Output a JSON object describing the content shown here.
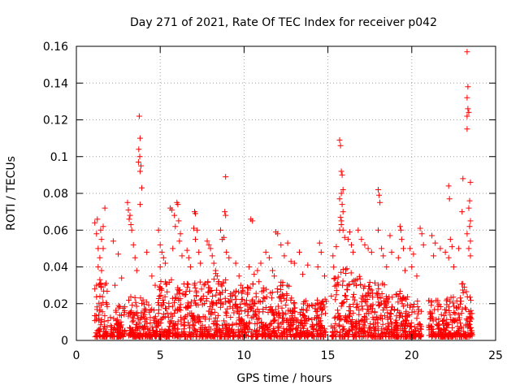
{
  "chart_data": {
    "type": "scatter",
    "title": "Day 271 of 2021, Rate Of TEC Index for receiver p042",
    "xlabel": "GPS time / hours",
    "ylabel": "ROTI / TECUs",
    "xlim": [
      0,
      25
    ],
    "ylim": [
      0,
      0.16
    ],
    "xticks": [
      0,
      5,
      10,
      15,
      20,
      25
    ],
    "xtick_labels": [
      "0",
      "5",
      "10",
      "15",
      "20",
      "25"
    ],
    "yticks": [
      0,
      0.02,
      0.04,
      0.06,
      0.08,
      0.1,
      0.12,
      0.14,
      0.16
    ],
    "ytick_labels": [
      "0",
      "0.02",
      "0.04",
      "0.06",
      "0.08",
      "0.1",
      "0.12",
      "0.14",
      "0.16"
    ],
    "grid": true,
    "marker": "plus",
    "color": "#ff0000",
    "series": [
      {
        "name": "ROTI",
        "points": [
          [
            1.1,
            0.064
          ],
          [
            1.2,
            0.058
          ],
          [
            1.3,
            0.05
          ],
          [
            1.4,
            0.045
          ],
          [
            1.5,
            0.038
          ],
          [
            1.6,
            0.062
          ],
          [
            1.7,
            0.072
          ],
          [
            1.5,
            0.055
          ],
          [
            1.3,
            0.04
          ],
          [
            1.2,
            0.03
          ],
          [
            1.25,
            0.066
          ],
          [
            1.45,
            0.06
          ],
          [
            1.6,
            0.05
          ],
          [
            1.1,
            0.028
          ],
          [
            1.4,
            0.033
          ],
          [
            2.2,
            0.054
          ],
          [
            2.5,
            0.047
          ],
          [
            2.7,
            0.034
          ],
          [
            2.3,
            0.03
          ],
          [
            3.05,
            0.075
          ],
          [
            3.1,
            0.071
          ],
          [
            3.2,
            0.068
          ],
          [
            3.3,
            0.06
          ],
          [
            3.4,
            0.052
          ],
          [
            3.5,
            0.045
          ],
          [
            3.6,
            0.038
          ],
          [
            3.15,
            0.066
          ],
          [
            3.25,
            0.063
          ],
          [
            3.75,
            0.122
          ],
          [
            3.8,
            0.11
          ],
          [
            3.72,
            0.104
          ],
          [
            3.78,
            0.1
          ],
          [
            3.85,
            0.095
          ],
          [
            3.8,
            0.092
          ],
          [
            3.7,
            0.097
          ],
          [
            3.9,
            0.083
          ],
          [
            3.8,
            0.074
          ],
          [
            4.2,
            0.048
          ],
          [
            4.5,
            0.035
          ],
          [
            4.7,
            0.03
          ],
          [
            4.9,
            0.06
          ],
          [
            5.0,
            0.052
          ],
          [
            5.1,
            0.048
          ],
          [
            5.2,
            0.045
          ],
          [
            5.3,
            0.042
          ],
          [
            5.0,
            0.04
          ],
          [
            5.6,
            0.072
          ],
          [
            5.7,
            0.071
          ],
          [
            5.85,
            0.068
          ],
          [
            6.0,
            0.075
          ],
          [
            6.05,
            0.074
          ],
          [
            6.1,
            0.065
          ],
          [
            6.2,
            0.058
          ],
          [
            5.9,
            0.062
          ],
          [
            6.15,
            0.054
          ],
          [
            6.3,
            0.046
          ],
          [
            5.75,
            0.05
          ],
          [
            6.6,
            0.049
          ],
          [
            6.7,
            0.045
          ],
          [
            6.8,
            0.04
          ],
          [
            7.05,
            0.07
          ],
          [
            7.1,
            0.069
          ],
          [
            7.0,
            0.061
          ],
          [
            7.2,
            0.06
          ],
          [
            7.1,
            0.055
          ],
          [
            7.3,
            0.048
          ],
          [
            7.4,
            0.042
          ],
          [
            7.8,
            0.054
          ],
          [
            7.9,
            0.052
          ],
          [
            8.0,
            0.05
          ],
          [
            8.1,
            0.046
          ],
          [
            8.2,
            0.042
          ],
          [
            8.3,
            0.038
          ],
          [
            8.4,
            0.035
          ],
          [
            8.5,
            0.032
          ],
          [
            8.6,
            0.06
          ],
          [
            8.7,
            0.055
          ],
          [
            8.9,
            0.089
          ],
          [
            8.85,
            0.07
          ],
          [
            8.9,
            0.068
          ],
          [
            8.8,
            0.056
          ],
          [
            8.95,
            0.048
          ],
          [
            9.1,
            0.045
          ],
          [
            9.5,
            0.042
          ],
          [
            9.7,
            0.035
          ],
          [
            9.8,
            0.03
          ],
          [
            10.4,
            0.066
          ],
          [
            10.5,
            0.065
          ],
          [
            10.3,
            0.04
          ],
          [
            10.6,
            0.036
          ],
          [
            10.8,
            0.038
          ],
          [
            11.0,
            0.042
          ],
          [
            11.3,
            0.048
          ],
          [
            11.5,
            0.045
          ],
          [
            11.7,
            0.038
          ],
          [
            11.8,
            0.035
          ],
          [
            11.9,
            0.059
          ],
          [
            12.0,
            0.058
          ],
          [
            12.2,
            0.052
          ],
          [
            12.4,
            0.046
          ],
          [
            12.6,
            0.053
          ],
          [
            12.8,
            0.043
          ],
          [
            13.3,
            0.048
          ],
          [
            13.0,
            0.042
          ],
          [
            13.5,
            0.036
          ],
          [
            13.8,
            0.041
          ],
          [
            14.5,
            0.053
          ],
          [
            14.6,
            0.048
          ],
          [
            14.4,
            0.04
          ],
          [
            14.8,
            0.035
          ],
          [
            15.3,
            0.046
          ],
          [
            15.5,
            0.051
          ],
          [
            15.7,
            0.06
          ],
          [
            15.8,
            0.065
          ],
          [
            15.7,
            0.109
          ],
          [
            15.75,
            0.106
          ],
          [
            15.8,
            0.092
          ],
          [
            15.85,
            0.09
          ],
          [
            15.9,
            0.082
          ],
          [
            15.8,
            0.08
          ],
          [
            15.7,
            0.077
          ],
          [
            15.85,
            0.074
          ],
          [
            15.9,
            0.07
          ],
          [
            15.75,
            0.067
          ],
          [
            15.8,
            0.063
          ],
          [
            15.9,
            0.06
          ],
          [
            16.0,
            0.056
          ],
          [
            16.2,
            0.055
          ],
          [
            16.3,
            0.059
          ],
          [
            16.4,
            0.052
          ],
          [
            16.5,
            0.048
          ],
          [
            16.8,
            0.06
          ],
          [
            17.0,
            0.055
          ],
          [
            17.2,
            0.052
          ],
          [
            17.4,
            0.05
          ],
          [
            17.6,
            0.048
          ],
          [
            18.0,
            0.082
          ],
          [
            18.05,
            0.079
          ],
          [
            18.1,
            0.075
          ],
          [
            18.0,
            0.06
          ],
          [
            18.2,
            0.05
          ],
          [
            18.3,
            0.046
          ],
          [
            18.7,
            0.057
          ],
          [
            18.8,
            0.048
          ],
          [
            18.5,
            0.04
          ],
          [
            19.3,
            0.062
          ],
          [
            19.35,
            0.06
          ],
          [
            19.4,
            0.055
          ],
          [
            19.5,
            0.05
          ],
          [
            19.2,
            0.045
          ],
          [
            19.6,
            0.038
          ],
          [
            19.9,
            0.05
          ],
          [
            20.1,
            0.047
          ],
          [
            20.0,
            0.04
          ],
          [
            20.3,
            0.035
          ],
          [
            20.5,
            0.061
          ],
          [
            20.6,
            0.058
          ],
          [
            20.7,
            0.052
          ],
          [
            21.2,
            0.057
          ],
          [
            21.4,
            0.053
          ],
          [
            21.3,
            0.046
          ],
          [
            21.7,
            0.05
          ],
          [
            22.0,
            0.048
          ],
          [
            22.2,
            0.084
          ],
          [
            22.25,
            0.077
          ],
          [
            22.3,
            0.055
          ],
          [
            22.4,
            0.051
          ],
          [
            22.2,
            0.045
          ],
          [
            22.5,
            0.04
          ],
          [
            22.8,
            0.05
          ],
          [
            23.0,
            0.07
          ],
          [
            23.05,
            0.088
          ],
          [
            23.3,
            0.157
          ],
          [
            23.35,
            0.138
          ],
          [
            23.3,
            0.132
          ],
          [
            23.35,
            0.126
          ],
          [
            23.4,
            0.124
          ],
          [
            23.3,
            0.122
          ],
          [
            23.3,
            0.115
          ],
          [
            23.5,
            0.086
          ],
          [
            23.45,
            0.076
          ],
          [
            23.4,
            0.072
          ],
          [
            23.5,
            0.065
          ],
          [
            23.45,
            0.062
          ],
          [
            23.3,
            0.058
          ],
          [
            23.5,
            0.054
          ],
          [
            23.4,
            0.05
          ],
          [
            23.5,
            0.046
          ]
        ]
      }
    ],
    "dense_bands": [
      [
        1.1,
        1.9,
        0.03
      ],
      [
        2.0,
        2.9,
        0.018
      ],
      [
        3.1,
        4.0,
        0.022
      ],
      [
        4.0,
        4.9,
        0.02
      ],
      [
        4.9,
        5.9,
        0.033
      ],
      [
        5.9,
        6.9,
        0.03
      ],
      [
        6.9,
        7.8,
        0.03
      ],
      [
        7.8,
        8.9,
        0.035
      ],
      [
        8.9,
        9.9,
        0.025
      ],
      [
        9.9,
        10.9,
        0.03
      ],
      [
        10.9,
        11.9,
        0.028
      ],
      [
        11.9,
        12.9,
        0.03
      ],
      [
        12.9,
        13.9,
        0.02
      ],
      [
        14.0,
        14.9,
        0.022
      ],
      [
        15.2,
        16.3,
        0.038
      ],
      [
        16.3,
        17.3,
        0.035
      ],
      [
        17.3,
        18.4,
        0.03
      ],
      [
        18.4,
        19.4,
        0.025
      ],
      [
        19.4,
        20.6,
        0.022
      ],
      [
        21.0,
        22.0,
        0.02
      ],
      [
        22.0,
        22.9,
        0.022
      ],
      [
        22.9,
        23.6,
        0.03
      ]
    ]
  }
}
